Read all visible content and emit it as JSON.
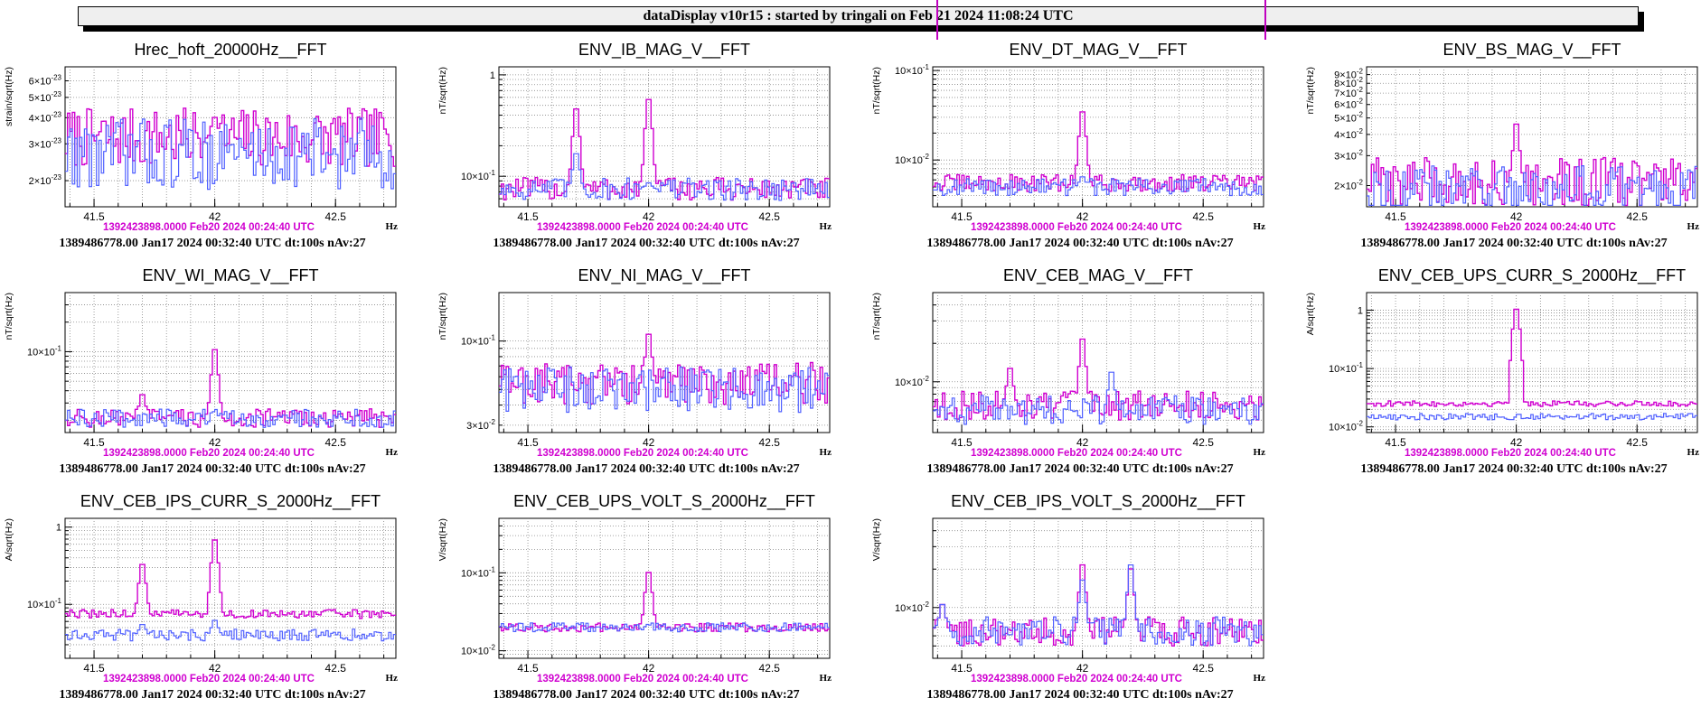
{
  "header": {
    "title": "dataDisplay v10r15 : started by tringali on Feb 21 2024 11:08:24 UTC"
  },
  "colors": {
    "current": "#d000d0",
    "reference": "#5060ff",
    "stamp_current": "#d000d0",
    "stamp_reference": "#000000"
  },
  "chart_data": [
    {
      "type": "line",
      "title": "Hrec_hoft_20000Hz__FFT",
      "xlabel": "Hz",
      "ylabel": "strain/sqrt(Hz)",
      "yscale": "log",
      "xlim": [
        41.38,
        42.75
      ],
      "ylim": [
        1.5e-23,
        7e-23
      ],
      "xticks": [
        41.5,
        42,
        42.5
      ],
      "xtick_labels": [
        "41.5",
        "42",
        "42.5"
      ],
      "yticks": [
        2e-23,
        3e-23,
        4e-23,
        5e-23,
        6e-23
      ],
      "ytick_labels": [
        [
          "2",
          "-23"
        ],
        [
          "3",
          "-23"
        ],
        [
          "4",
          "-23"
        ],
        [
          "5",
          "-23"
        ],
        [
          "6",
          "-23"
        ]
      ],
      "grid": true,
      "series": [
        {
          "color": "#d000d0",
          "base": 3.2e-23,
          "noise": 0.15,
          "peaks": [
            [
              42.0,
              4.3e-23
            ]
          ]
        },
        {
          "color": "#5060ff",
          "base": 2.7e-23,
          "noise": 0.18,
          "peaks": []
        }
      ],
      "stamp_current": "1392423898.0000 Feb20 2024 00:24:40 UTC",
      "stamp_reference": "1389486778.00 Jan17 2024 00:32:40 UTC dt:100s nAv:27"
    },
    {
      "type": "line",
      "title": "ENV_IB_MAG_V__FFT",
      "xlabel": "Hz",
      "ylabel": "nT/sqrt(Hz)",
      "yscale": "log",
      "xlim": [
        41.38,
        42.75
      ],
      "ylim": [
        0.05,
        1.2
      ],
      "xticks": [
        41.5,
        42,
        42.5
      ],
      "xtick_labels": [
        "41.5",
        "42",
        "42.5"
      ],
      "yticks": [
        0.1,
        1
      ],
      "ytick_labels": [
        [
          "10",
          "-1"
        ],
        [
          "1",
          ""
        ]
      ],
      "grid": true,
      "series": [
        {
          "color": "#d000d0",
          "base": 0.075,
          "noise": 0.12,
          "peaks": [
            [
              41.7,
              0.6
            ],
            [
              42.0,
              0.75
            ]
          ]
        },
        {
          "color": "#5060ff",
          "base": 0.075,
          "noise": 0.12,
          "peaks": [
            [
              41.7,
              0.2
            ],
            [
              42.0,
              0.09
            ]
          ]
        }
      ],
      "stamp_current": "1392423898.0000 Feb20 2024 00:24:40 UTC",
      "stamp_reference": "1389486778.00 Jan17 2024 00:32:40 UTC dt:100s nAv:27"
    },
    {
      "type": "line",
      "title": "ENV_DT_MAG_V__FFT",
      "xlabel": "Hz",
      "ylabel": "nT/sqrt(Hz)",
      "yscale": "log",
      "xlim": [
        41.38,
        42.75
      ],
      "ylim": [
        0.003,
        0.11
      ],
      "xticks": [
        41.5,
        42,
        42.5
      ],
      "xtick_labels": [
        "41.5",
        "42",
        "42.5"
      ],
      "yticks": [
        0.01,
        0.1
      ],
      "ytick_labels": [
        [
          "10",
          "-2"
        ],
        [
          "10",
          "-1"
        ]
      ],
      "grid": true,
      "series": [
        {
          "color": "#d000d0",
          "base": 0.0055,
          "noise": 0.1,
          "peaks": [
            [
              42.0,
              0.045
            ]
          ]
        },
        {
          "color": "#5060ff",
          "base": 0.005,
          "noise": 0.1,
          "peaks": [
            [
              42.0,
              0.007
            ]
          ]
        }
      ],
      "stamp_current": "1392423898.0000 Feb20 2024 00:24:40 UTC",
      "stamp_reference": "1389486778.00 Jan17 2024 00:32:40 UTC dt:100s nAv:27"
    },
    {
      "type": "line",
      "title": "ENV_BS_MAG_V__FFT",
      "xlabel": "Hz",
      "ylabel": "nT/sqrt(Hz)",
      "yscale": "log",
      "xlim": [
        41.38,
        42.75
      ],
      "ylim": [
        0.015,
        0.1
      ],
      "xticks": [
        41.5,
        42,
        42.5
      ],
      "xtick_labels": [
        "41.5",
        "42",
        "42.5"
      ],
      "yticks": [
        0.02,
        0.03,
        0.04,
        0.05,
        0.06,
        0.07,
        0.08,
        0.09
      ],
      "ytick_labels": [
        [
          "2",
          "-2"
        ],
        [
          "3",
          "-2"
        ],
        [
          "4",
          "-2"
        ],
        [
          "5",
          "-2"
        ],
        [
          "6",
          "-2"
        ],
        [
          "7",
          "-2"
        ],
        [
          "8",
          "-2"
        ],
        [
          "9",
          "-2"
        ]
      ],
      "grid": true,
      "series": [
        {
          "color": "#d000d0",
          "base": 0.021,
          "noise": 0.15,
          "peaks": [
            [
              42.0,
              0.055
            ]
          ]
        },
        {
          "color": "#5060ff",
          "base": 0.019,
          "noise": 0.15,
          "peaks": []
        }
      ],
      "stamp_current": "1392423898.0000 Feb20 2024 00:24:40 UTC",
      "stamp_reference": "1389486778.00 Jan17 2024 00:32:40 UTC dt:100s nAv:27"
    },
    {
      "type": "line",
      "title": "ENV_WI_MAG_V__FFT",
      "xlabel": "Hz",
      "ylabel": "nT/sqrt(Hz)",
      "yscale": "log",
      "xlim": [
        41.38,
        42.75
      ],
      "ylim": [
        0.015,
        0.4
      ],
      "xticks": [
        41.5,
        42,
        42.5
      ],
      "xtick_labels": [
        "41.5",
        "42",
        "42.5"
      ],
      "yticks": [
        0.1
      ],
      "ytick_labels": [
        [
          "10",
          "-1"
        ]
      ],
      "grid": true,
      "series": [
        {
          "color": "#d000d0",
          "base": 0.021,
          "noise": 0.1,
          "peaks": [
            [
              41.7,
              0.042
            ],
            [
              42.0,
              0.135
            ]
          ]
        },
        {
          "color": "#5060ff",
          "base": 0.021,
          "noise": 0.1,
          "peaks": []
        }
      ],
      "stamp_current": "1392423898.0000 Feb20 2024 00:24:40 UTC",
      "stamp_reference": "1389486778.00 Jan17 2024 00:32:40 UTC dt:100s nAv:27"
    },
    {
      "type": "line",
      "title": "ENV_NI_MAG_V__FFT",
      "xlabel": "Hz",
      "ylabel": "nT/sqrt(Hz)",
      "yscale": "log",
      "xlim": [
        41.38,
        42.75
      ],
      "ylim": [
        0.027,
        0.2
      ],
      "xticks": [
        41.5,
        42,
        42.5
      ],
      "xtick_labels": [
        "41.5",
        "42",
        "42.5"
      ],
      "yticks": [
        0.03,
        0.1
      ],
      "ytick_labels": [
        [
          "3",
          "-2"
        ],
        [
          "10",
          "-1"
        ]
      ],
      "grid": true,
      "series": [
        {
          "color": "#d000d0",
          "base": 0.055,
          "noise": 0.14,
          "peaks": [
            [
              42.0,
              0.13
            ]
          ]
        },
        {
          "color": "#5060ff",
          "base": 0.05,
          "noise": 0.15,
          "peaks": []
        }
      ],
      "stamp_current": "1392423898.0000 Feb20 2024 00:24:40 UTC",
      "stamp_reference": "1389486778.00 Jan17 2024 00:32:40 UTC dt:100s nAv:27"
    },
    {
      "type": "line",
      "title": "ENV_CEB_MAG_V__FFT",
      "xlabel": "Hz",
      "ylabel": "nT/sqrt(Hz)",
      "yscale": "log",
      "xlim": [
        41.38,
        42.75
      ],
      "ylim": [
        0.004,
        0.05
      ],
      "xticks": [
        41.5,
        42,
        42.5
      ],
      "xtick_labels": [
        "41.5",
        "42",
        "42.5"
      ],
      "yticks": [
        0.01
      ],
      "ytick_labels": [
        [
          "10",
          "-2"
        ]
      ],
      "grid": true,
      "series": [
        {
          "color": "#d000d0",
          "base": 0.0065,
          "noise": 0.12,
          "peaks": [
            [
              41.7,
              0.015
            ],
            [
              42.0,
              0.027
            ]
          ]
        },
        {
          "color": "#5060ff",
          "base": 0.006,
          "noise": 0.12,
          "peaks": [
            [
              42.12,
              0.014
            ]
          ]
        }
      ],
      "stamp_current": "1392423898.0000 Feb20 2024 00:24:40 UTC",
      "stamp_reference": "1389486778.00 Jan17 2024 00:32:40 UTC dt:100s nAv:27"
    },
    {
      "type": "line",
      "title": "ENV_CEB_UPS_CURR_S_2000Hz__FFT",
      "xlabel": "Hz",
      "ylabel": "A/sqrt(Hz)",
      "yscale": "log",
      "xlim": [
        41.38,
        42.75
      ],
      "ylim": [
        0.008,
        2
      ],
      "xticks": [
        41.5,
        42,
        42.5
      ],
      "xtick_labels": [
        "41.5",
        "42",
        "42.5"
      ],
      "yticks": [
        0.01,
        0.1,
        1
      ],
      "ytick_labels": [
        [
          "10",
          "-2"
        ],
        [
          "10",
          "-1"
        ],
        [
          "1",
          ""
        ]
      ],
      "grid": true,
      "series": [
        {
          "color": "#d000d0",
          "base": 0.025,
          "noise": 0.05,
          "peaks": [
            [
              42.0,
              1.4
            ]
          ]
        },
        {
          "color": "#5060ff",
          "base": 0.015,
          "noise": 0.06,
          "peaks": []
        }
      ],
      "stamp_current": "1392423898.0000 Feb20 2024 00:24:40 UTC",
      "stamp_reference": "1389486778.00 Jan17 2024 00:32:40 UTC dt:100s nAv:27"
    },
    {
      "type": "line",
      "title": "ENV_CEB_IPS_CURR_S_2000Hz__FFT",
      "xlabel": "Hz",
      "ylabel": "A/sqrt(Hz)",
      "yscale": "log",
      "xlim": [
        41.38,
        42.75
      ],
      "ylim": [
        0.02,
        1.3
      ],
      "xticks": [
        41.5,
        42,
        42.5
      ],
      "xtick_labels": [
        "41.5",
        "42",
        "42.5"
      ],
      "yticks": [
        0.1,
        1
      ],
      "ytick_labels": [
        [
          "10",
          "-1"
        ],
        [
          "1",
          ""
        ]
      ],
      "grid": true,
      "series": [
        {
          "color": "#d000d0",
          "base": 0.075,
          "noise": 0.06,
          "peaks": [
            [
              41.7,
              0.42
            ],
            [
              42.0,
              0.9
            ]
          ]
        },
        {
          "color": "#5060ff",
          "base": 0.04,
          "noise": 0.08,
          "peaks": [
            [
              41.7,
              0.06
            ],
            [
              42.0,
              0.07
            ]
          ]
        }
      ],
      "stamp_current": "1392423898.0000 Feb20 2024 00:24:40 UTC",
      "stamp_reference": "1389486778.00 Jan17 2024 00:32:40 UTC dt:100s nAv:27"
    },
    {
      "type": "line",
      "title": "ENV_CEB_UPS_VOLT_S_2000Hz__FFT",
      "xlabel": "Hz",
      "ylabel": "V/sqrt(Hz)",
      "yscale": "log",
      "xlim": [
        41.38,
        42.75
      ],
      "ylim": [
        0.008,
        0.5
      ],
      "xticks": [
        41.5,
        42,
        42.5
      ],
      "xtick_labels": [
        "41.5",
        "42",
        "42.5"
      ],
      "yticks": [
        0.01,
        0.1
      ],
      "ytick_labels": [
        [
          "10",
          "-2"
        ],
        [
          "10",
          "-1"
        ]
      ],
      "grid": true,
      "series": [
        {
          "color": "#d000d0",
          "base": 0.02,
          "noise": 0.06,
          "peaks": [
            [
              42.0,
              0.13
            ]
          ]
        },
        {
          "color": "#5060ff",
          "base": 0.02,
          "noise": 0.06,
          "peaks": []
        }
      ],
      "stamp_current": "1392423898.0000 Feb20 2024 00:24:40 UTC",
      "stamp_reference": "1389486778.00 Jan17 2024 00:32:40 UTC dt:100s nAv:27"
    },
    {
      "type": "line",
      "title": "ENV_CEB_IPS_VOLT_S_2000Hz__FFT",
      "xlabel": "Hz",
      "ylabel": "V/sqrt(Hz)",
      "yscale": "log",
      "xlim": [
        41.38,
        42.75
      ],
      "ylim": [
        0.004,
        0.05
      ],
      "xticks": [
        41.5,
        42,
        42.5
      ],
      "xtick_labels": [
        "41.5",
        "42",
        "42.5"
      ],
      "yticks": [
        0.01
      ],
      "ytick_labels": [
        [
          "10",
          "-2"
        ]
      ],
      "grid": true,
      "series": [
        {
          "color": "#d000d0",
          "base": 0.0065,
          "noise": 0.12,
          "peaks": [
            [
              41.42,
              0.012
            ],
            [
              42.0,
              0.027
            ],
            [
              42.2,
              0.025
            ]
          ]
        },
        {
          "color": "#5060ff",
          "base": 0.0065,
          "noise": 0.12,
          "peaks": [
            [
              41.42,
              0.012
            ],
            [
              42.0,
              0.02
            ],
            [
              42.2,
              0.027
            ]
          ]
        }
      ],
      "stamp_current": "1392423898.0000 Feb20 2024 00:24:40 UTC",
      "stamp_reference": "1389486778.00 Jan17 2024 00:32:40 UTC dt:100s nAv:27"
    }
  ]
}
